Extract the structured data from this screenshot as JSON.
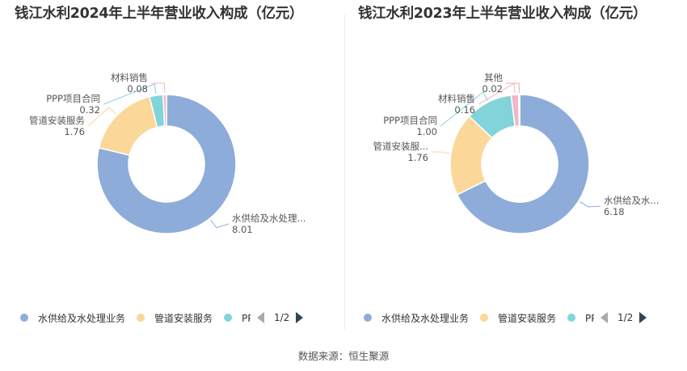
{
  "colors": [
    "#8eacd9",
    "#fbd79a",
    "#83d3da",
    "#f2b6c9",
    "#f7a8a8"
  ],
  "pager_label": "1/2",
  "source": "数据来源：恒生聚源",
  "chart_data": [
    {
      "type": "pie",
      "title": "钱江水利2024年上半年营业收入构成（亿元）",
      "unit": "亿元",
      "legend_position": "bottom",
      "legend_visible": [
        "水供给及水处理业务",
        "管道安装服务",
        "PPP项目合同"
      ],
      "slices": [
        {
          "name": "水供给及水处理业务",
          "display_name": "水供给及水处理...",
          "value": 8.01,
          "value_label": "8.01"
        },
        {
          "name": "管道安装服务",
          "display_name": "管道安装服务",
          "value": 1.76,
          "value_label": "1.76"
        },
        {
          "name": "PPP项目合同",
          "display_name": "PPP项目合同",
          "value": 0.32,
          "value_label": "0.32"
        },
        {
          "name": "材料销售",
          "display_name": "材料销售",
          "value": 0.08,
          "value_label": "0.08"
        }
      ]
    },
    {
      "type": "pie",
      "title": "钱江水利2023年上半年营业收入构成（亿元）",
      "unit": "亿元",
      "legend_position": "bottom",
      "legend_visible": [
        "水供给及水处理业务",
        "管道安装服务",
        "PPP项目合同"
      ],
      "slices": [
        {
          "name": "水供给及水处理业务",
          "display_name": "水供给及水...",
          "value": 6.18,
          "value_label": "6.18"
        },
        {
          "name": "管道安装服务",
          "display_name": "管道安装服...",
          "value": 1.76,
          "value_label": "1.76"
        },
        {
          "name": "PPP项目合同",
          "display_name": "PPP项目合同",
          "value": 1.0,
          "value_label": "1.00"
        },
        {
          "name": "材料销售",
          "display_name": "材料销售",
          "value": 0.16,
          "value_label": "0.16"
        },
        {
          "name": "其他",
          "display_name": "其他",
          "value": 0.02,
          "value_label": "0.02"
        }
      ]
    }
  ]
}
